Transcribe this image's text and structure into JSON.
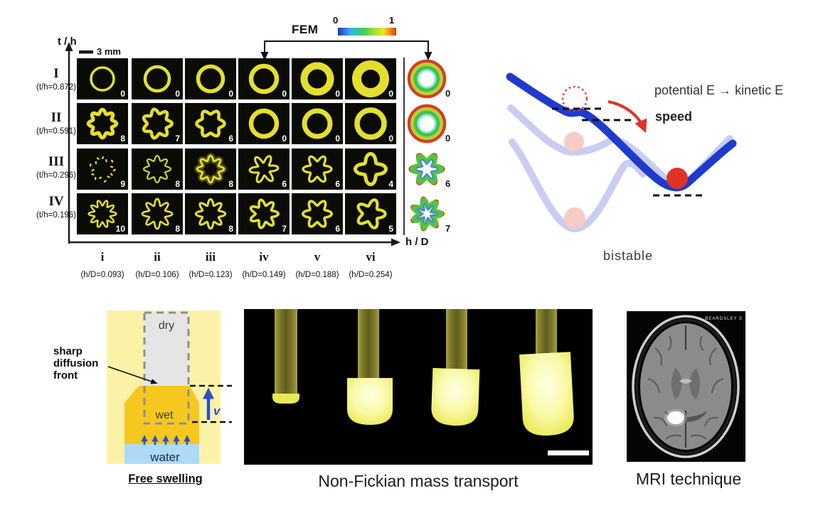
{
  "panel_morphology": {
    "y_axis_label": "t / h",
    "x_axis_label": "h / D",
    "scale_bar": "3 mm",
    "fem": {
      "label": "FEM",
      "cbar_min": "0",
      "cbar_max": "1"
    },
    "rows": [
      {
        "numeral": "I",
        "param": "(t/h=0.872)",
        "modes": [
          0,
          0,
          0,
          0,
          0,
          0
        ],
        "fem_mode": 0
      },
      {
        "numeral": "II",
        "param": "(t/h=0.591)",
        "modes": [
          8,
          7,
          6,
          0,
          0,
          0
        ],
        "fem_mode": 0
      },
      {
        "numeral": "III",
        "param": "(t/h=0.296)",
        "modes": [
          9,
          8,
          8,
          6,
          6,
          4
        ],
        "fem_mode": 6
      },
      {
        "numeral": "IV",
        "param": "(t/h=0.196)",
        "modes": [
          10,
          8,
          8,
          7,
          6,
          5
        ],
        "fem_mode": 7
      }
    ],
    "columns": [
      {
        "numeral": "i",
        "param": "(h/D=0.093)"
      },
      {
        "numeral": "ii",
        "param": "(h/D=0.106)"
      },
      {
        "numeral": "iii",
        "param": "(h/D=0.123)"
      },
      {
        "numeral": "iv",
        "param": "(h/D=0.149)"
      },
      {
        "numeral": "v",
        "param": "(h/D=0.188)"
      },
      {
        "numeral": "vi",
        "param": "(h/D=0.254)"
      }
    ]
  },
  "panel_energy": {
    "annotation_energy": "potential E → kinetic E",
    "annotation_speed": "speed",
    "caption": "bistable"
  },
  "panel_swelling": {
    "label_dry": "dry",
    "label_wet": "wet",
    "label_water": "water",
    "label_front": "sharp diffusion front",
    "label_velocity": "v",
    "caption": "Free swelling"
  },
  "panel_transport": {
    "caption": "Non-Fickian mass transport"
  },
  "panel_mri": {
    "caption": "MRI technique",
    "overlay_text": "BEARDSLEY  S"
  },
  "colors": {
    "gel_yellow": "#e4df2e",
    "curve_dark_blue": "#1e3bcd",
    "curve_light_blue": "#c9cdf4",
    "ball_red": "#e03325",
    "ball_pink": "#f7ccc7",
    "wet_gold": "#f6c71f",
    "water_blue": "#aedaf8",
    "dry_gray": "#e5e5e5",
    "swelling_bg": "#fbf2a8",
    "arrow_blue": "#2750cc"
  }
}
